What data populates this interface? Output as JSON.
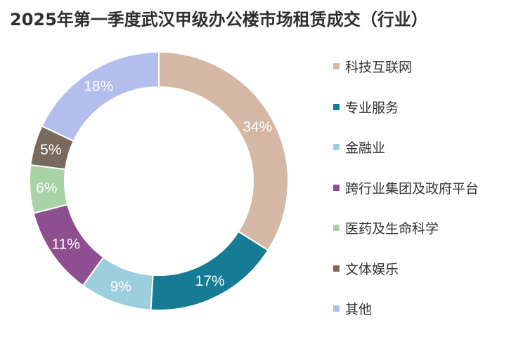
{
  "title": "2025年第一季度武汉甲级办公楼市场租赁成交（行业）",
  "chart_data": {
    "type": "pie",
    "style": "donut",
    "title": "2025年第一季度武汉甲级办公楼市场租赁成交（行业）",
    "legend_position": "right",
    "categories": [
      "科技互联网",
      "专业服务",
      "金融业",
      "跨行业集团及政府平台",
      "医药及生命科学",
      "文体娱乐",
      "其他"
    ],
    "values": [
      34,
      17,
      9,
      11,
      6,
      5,
      18
    ],
    "labels": [
      "34%",
      "17%",
      "9%",
      "11%",
      "6%",
      "5%",
      "18%"
    ],
    "colors": [
      "#d4b8a5",
      "#167c96",
      "#9ccedd",
      "#8d4f8f",
      "#a7d3a6",
      "#786a5f",
      "#b3beef"
    ]
  }
}
